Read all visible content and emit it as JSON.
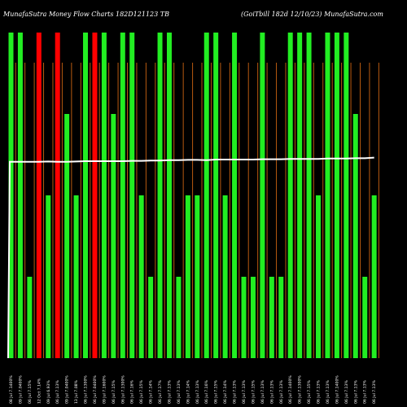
{
  "header": {
    "left": "MunafaSutra Money Flow Charts 182D121123 TB",
    "right": "(GoiTbill 182d 12/10/23) MunafaSutra.com"
  },
  "colors": {
    "background": "#000000",
    "up_bar": "#22ee22",
    "down_bar": "#ff0000",
    "divider": "#b85a10",
    "price_line": "#ffffff"
  },
  "chart_data": {
    "type": "bar",
    "title": "MunafaSutra Money Flow Charts 182D121123 TB",
    "ylim": [
      0,
      100
    ],
    "grid": false,
    "legend": "none",
    "categories": [
      "08 Jul 7.1400%",
      "09 Jul 7.0400%",
      "06 Jul 7.15%",
      "12 Oct 7.14%",
      "09 Jul 6.93%",
      "06 Jul 7.13%",
      "09 Jul 7.0400%",
      "13 Jul 7.08%",
      "06 Jul 7.1300%",
      "06 Jul 7.0400%",
      "09 Jul 7.1600%",
      "06 Jul 7.15%",
      "06 Jul 7.1300%",
      "06 Jul 7.16%",
      "06 Jul 7.15%",
      "06 Jul 7.14%",
      "06 Jul 7.17%",
      "06 Jul 7.13%",
      "06 Jul 7.13%",
      "06 Jul 7.14%",
      "06 Jul 7.13%",
      "06 Jul 7.16%",
      "06 Jul 7.15%",
      "06 Jul 7.14%",
      "06 Jul 7.13%",
      "06 Jul 7.13%",
      "06 Jul 7.15%",
      "06 Jul 7.13%",
      "06 Jul 7.13%",
      "06 Jul 7.13%",
      "06 Jul 7.1400%",
      "06 Jul 7.1300%",
      "06 Jul 7.15%",
      "06 Jul 7.13%",
      "06 Jul 7.13%",
      "06 Jul 7.1400%",
      "06 Jul 7.13%",
      "06 Jul 7.13%",
      "06 Jul 7.13%",
      "06 Jul 7.13%"
    ],
    "series": [
      {
        "values": [
          100,
          100,
          25,
          100,
          50,
          100,
          75,
          50,
          100,
          100,
          100,
          75,
          100,
          100,
          50,
          25,
          100,
          100,
          25,
          50,
          50,
          100,
          100,
          50,
          100,
          25,
          25,
          100,
          25,
          25,
          100,
          100,
          100,
          50,
          100,
          100,
          100,
          75,
          25,
          50
        ],
        "direction": [
          "up",
          "up",
          "up",
          "down",
          "up",
          "down",
          "up",
          "up",
          "up",
          "down",
          "up",
          "up",
          "up",
          "up",
          "up",
          "up",
          "up",
          "up",
          "up",
          "up",
          "up",
          "up",
          "up",
          "up",
          "up",
          "up",
          "up",
          "up",
          "up",
          "up",
          "up",
          "up",
          "up",
          "up",
          "up",
          "up",
          "up",
          "up",
          "up",
          "up"
        ]
      }
    ],
    "price_line": {
      "x_start": 0,
      "start_value": 0,
      "values": [
        60.3,
        60.3,
        60.3,
        60.3,
        60.4,
        60.3,
        60.3,
        60.4,
        60.5,
        60.5,
        60.5,
        60.5,
        60.5,
        60.6,
        60.6,
        60.7,
        60.7,
        60.8,
        60.8,
        60.9,
        60.9,
        60.8,
        61.0,
        61.0,
        61.0,
        61.0,
        61.0,
        61.1,
        61.1,
        61.1,
        61.2,
        61.2,
        61.2,
        61.2,
        61.3,
        61.3,
        61.3,
        61.4,
        61.4,
        61.6
      ]
    }
  }
}
